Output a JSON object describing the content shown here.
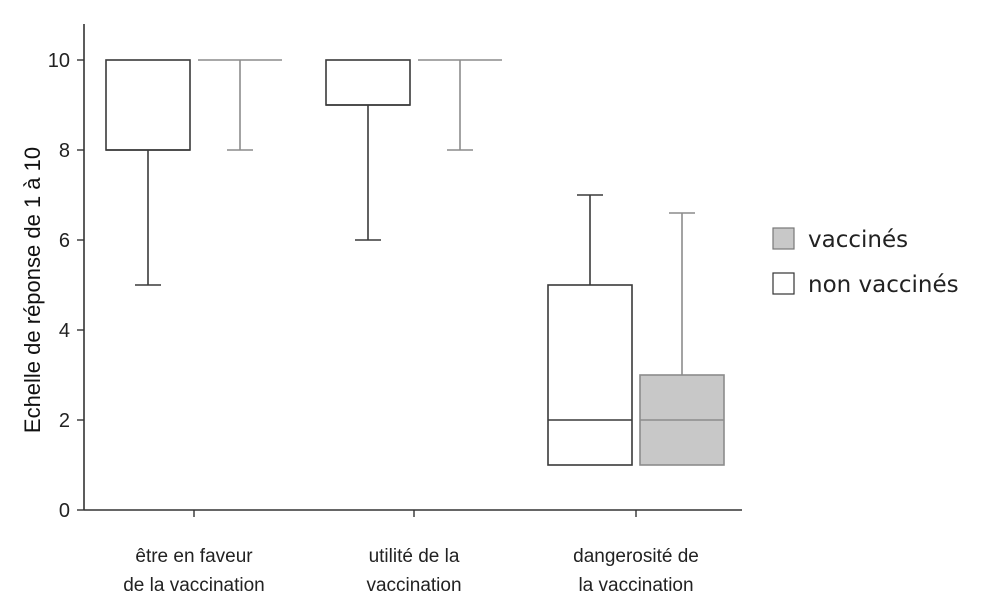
{
  "chart_data": {
    "type": "box",
    "ylabel": "Echelle de réponse de 1 à 10",
    "ylim": [
      0,
      10.8
    ],
    "yticks": [
      0,
      2,
      4,
      6,
      8,
      10
    ],
    "categories": [
      [
        "être en faveur",
        "de la vaccination"
      ],
      [
        "utilité de la",
        "vaccination"
      ],
      [
        "dangerosité de",
        "la vaccination"
      ]
    ],
    "legend_position": "right",
    "series": [
      {
        "name": "non vaccinés",
        "fill": "#ffffff",
        "stroke": "#3a3a3a",
        "boxes": [
          {
            "min": 5,
            "q1": 8,
            "median": 8,
            "q3": 10,
            "max": 10
          },
          {
            "min": 6,
            "q1": 9,
            "median": 9,
            "q3": 10,
            "max": 10
          },
          {
            "min": 1,
            "q1": 1,
            "median": 2,
            "q3": 5,
            "max": 7
          }
        ]
      },
      {
        "name": "vaccinés",
        "fill": "#c8c8c8",
        "stroke": "#8c8c8c",
        "boxes": [
          {
            "min": 8,
            "q1": 10,
            "median": 10,
            "q3": 10,
            "max": 10
          },
          {
            "min": 8,
            "q1": 10,
            "median": 10,
            "q3": 10,
            "max": 10
          },
          {
            "min": 1,
            "q1": 1,
            "median": 2,
            "q3": 3,
            "max": 6.6
          }
        ]
      }
    ]
  }
}
